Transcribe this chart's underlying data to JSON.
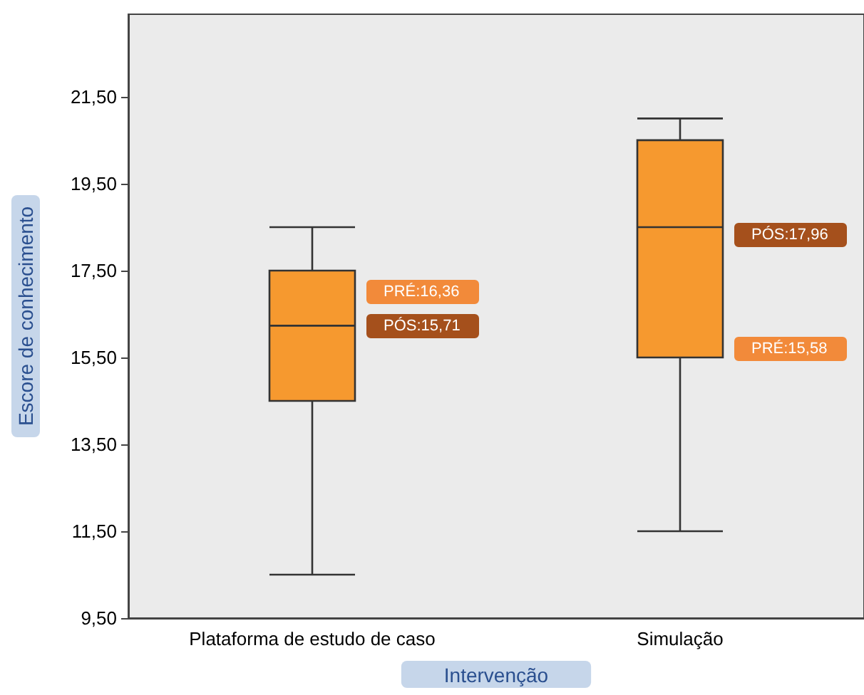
{
  "chart_data": {
    "type": "box",
    "xlabel": "Intervenção",
    "ylabel": "Escore de conhecimento",
    "categories": [
      "Plataforma de estudo de caso",
      "Simulação"
    ],
    "boxes": [
      {
        "low": 10.5,
        "q1": 14.5,
        "median": 16.23,
        "q3": 17.5,
        "high": 18.5
      },
      {
        "low": 11.5,
        "q1": 15.5,
        "median": 18.5,
        "q3": 20.5,
        "high": 21.0
      }
    ],
    "color": "#f6992f",
    "ylim": [
      9.5,
      23.4
    ],
    "yticks": [
      {
        "value": 9.5,
        "label": "9,50"
      },
      {
        "value": 11.5,
        "label": "11,50"
      },
      {
        "value": 13.5,
        "label": "13,50"
      },
      {
        "value": 15.5,
        "label": "15,50"
      },
      {
        "value": 17.5,
        "label": "17,50"
      },
      {
        "value": 19.5,
        "label": "19,50"
      },
      {
        "value": 21.5,
        "label": "21,50"
      }
    ],
    "grid": false,
    "annotations": [
      "PRÉ:16,36",
      "PÓS:15,71",
      "PÓS:17,96",
      "PRÉ:15,58"
    ]
  }
}
